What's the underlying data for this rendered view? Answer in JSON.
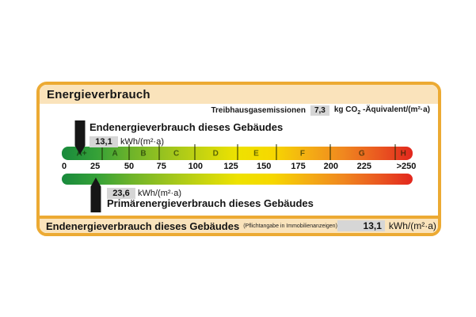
{
  "title": "Energieverbrauch",
  "emissions": {
    "label": "Treibhausgasemissionen",
    "value": "7,3",
    "unit_before": "kg CO",
    "unit_sub": "2",
    "unit_after": " -Äquivalent/(m²·a)"
  },
  "end_energy": {
    "label": "Endenergieverbrauch dieses Gebäudes",
    "value": "13,1",
    "unit": "kWh/(m²·a)"
  },
  "primary_energy": {
    "label": "Primärenergieverbrauch dieses Gebäudes",
    "value": "23,6",
    "unit": "kWh/(m²·a)"
  },
  "scale": {
    "classes": [
      {
        "label": "A+",
        "from_pct": 0,
        "to_pct": 11.3
      },
      {
        "label": "A",
        "from_pct": 11.3,
        "to_pct": 19.0
      },
      {
        "label": "B",
        "from_pct": 19.0,
        "to_pct": 27.5
      },
      {
        "label": "C",
        "from_pct": 27.5,
        "to_pct": 37.8
      },
      {
        "label": "D",
        "from_pct": 37.8,
        "to_pct": 49.9
      },
      {
        "label": "E",
        "from_pct": 49.9,
        "to_pct": 60.9
      },
      {
        "label": "F",
        "from_pct": 60.9,
        "to_pct": 76.3
      },
      {
        "label": "G",
        "from_pct": 76.3,
        "to_pct": 94.7
      },
      {
        "label": "H",
        "from_pct": 94.7,
        "to_pct": 100
      }
    ],
    "ticks": [
      {
        "label": "0",
        "pct": 0.7
      },
      {
        "label": "25",
        "pct": 9.5
      },
      {
        "label": "50",
        "pct": 19.2
      },
      {
        "label": "75",
        "pct": 28.4
      },
      {
        "label": "100",
        "pct": 38.1
      },
      {
        "label": "125",
        "pct": 48.2
      },
      {
        "label": "150",
        "pct": 57.6
      },
      {
        "label": "175",
        "pct": 67.4
      },
      {
        "label": "200",
        "pct": 76.7
      },
      {
        "label": "225",
        "pct": 86.2
      },
      {
        "label": ">250",
        "pct": 98.2
      }
    ]
  },
  "markers": {
    "end_energy_pct": 5.2,
    "primary_energy_pct": 9.7
  },
  "footer": {
    "label": "Endenergieverbrauch dieses Gebäudes",
    "note": "(Pflichtangabe in Immobilienanzeigen)",
    "value": "13,1",
    "unit": "kWh/(m²·a)"
  },
  "colors": {
    "frame_orange": "#ecaa33",
    "panel_tan": "#fae3bb",
    "value_box_gray": "#d6d6d6",
    "gradient": [
      "#188a3c",
      "#35a138",
      "#6fb42a",
      "#9cc41e",
      "#c6d410",
      "#eee200",
      "#f6d800",
      "#f4af14",
      "#f0881f",
      "#ea5a20",
      "#e2271e"
    ]
  },
  "chart_data": {
    "type": "gauge-scale",
    "title": "Energieverbrauch",
    "axis_ticks": [
      "0",
      "25",
      "50",
      "75",
      "100",
      "125",
      "150",
      "175",
      "200",
      "225",
      ">250"
    ],
    "classes": [
      "A+",
      "A",
      "B",
      "C",
      "D",
      "E",
      "F",
      "G",
      "H"
    ],
    "class_upper_bounds_kwh": [
      30,
      50,
      75,
      100,
      130,
      160,
      200,
      250,
      null
    ],
    "unit": "kWh/(m²·a)",
    "markers": [
      {
        "name": "Endenergieverbrauch dieses Gebäudes",
        "value": 13.1
      },
      {
        "name": "Primärenergieverbrauch dieses Gebäudes",
        "value": 23.6
      }
    ],
    "emissions": {
      "name": "Treibhausgasemissionen",
      "value": 7.3,
      "unit": "kg CO2-Äquivalent/(m²·a)"
    }
  }
}
